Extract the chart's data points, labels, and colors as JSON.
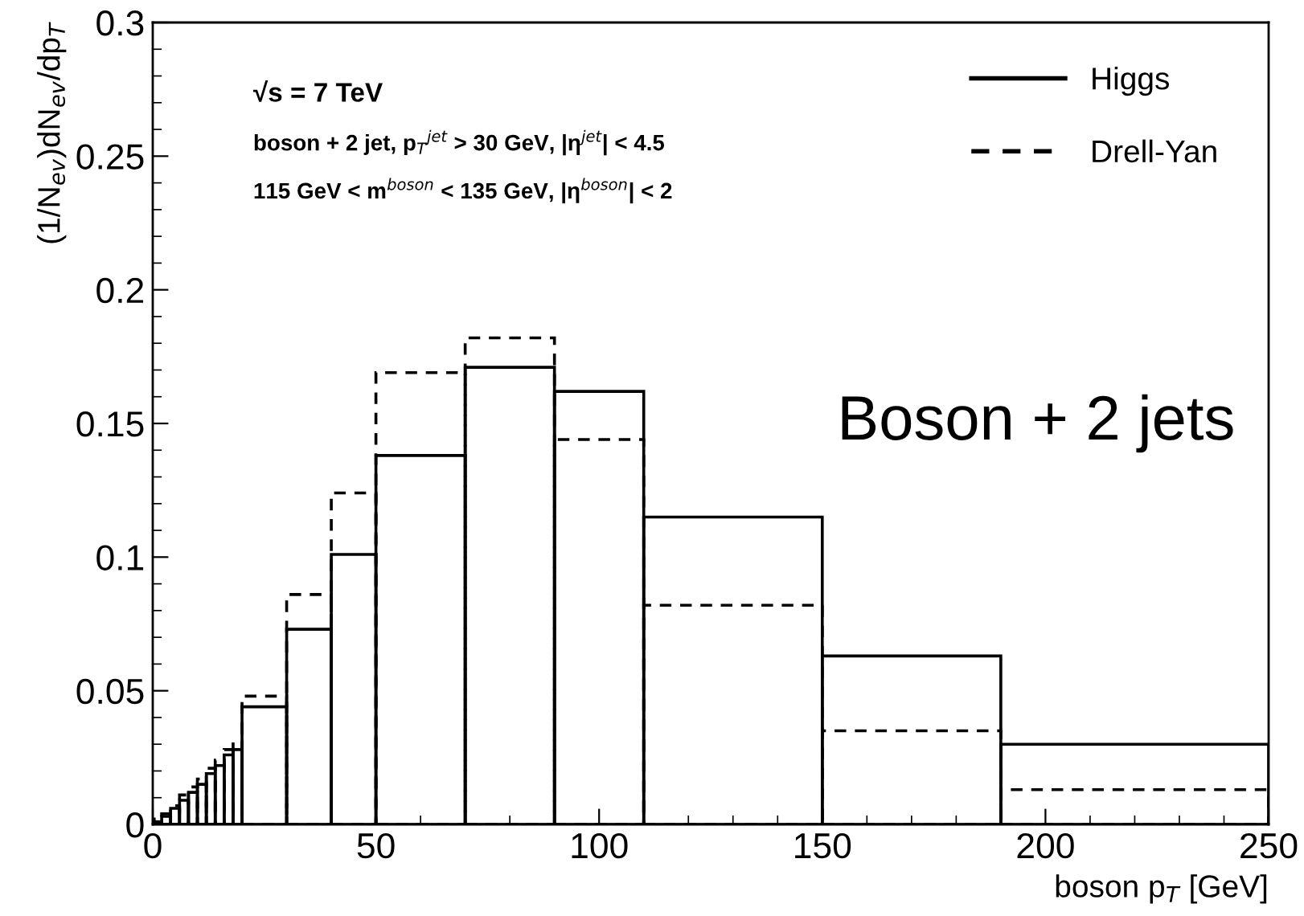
{
  "chart_data": {
    "type": "histogram",
    "xlabel": "boson p$_{T}$ [GeV]",
    "ylabel": "(1/N$_{ev}$)dN$_{ev}$/dp$_{T}$",
    "bins": [
      0,
      2,
      4,
      6,
      8,
      10,
      12,
      14,
      16,
      18,
      20,
      30,
      40,
      50,
      70,
      90,
      110,
      150,
      190,
      250
    ],
    "series": [
      {
        "name": "Higgs",
        "color": "#000000",
        "line_style": "solid",
        "values": [
          0.001,
          0.003,
          0.006,
          0.009,
          0.012,
          0.015,
          0.019,
          0.022,
          0.026,
          0.028,
          0.044,
          0.073,
          0.101,
          0.138,
          0.171,
          0.162,
          0.115,
          0.063,
          0.03
        ]
      },
      {
        "name": "Drell-Yan",
        "color": "#000000",
        "line_style": "dashed",
        "values": [
          0.002,
          0.004,
          0.007,
          0.011,
          0.014,
          0.017,
          0.021,
          0.024,
          0.028,
          0.031,
          0.048,
          0.086,
          0.124,
          0.169,
          0.182,
          0.144,
          0.082,
          0.035,
          0.013
        ]
      }
    ],
    "xlim": [
      0,
      250
    ],
    "ylim": [
      0,
      0.3
    ],
    "xticks": [
      0,
      50,
      100,
      150,
      200,
      250
    ],
    "yticks": [
      0,
      0.05,
      0.1,
      0.15,
      0.2,
      0.25,
      0.3
    ],
    "legend": "top right",
    "grid": false,
    "annotations": [
      "√s = 7 TeV",
      "boson + 2 jet, p$_{T}$$^{jet}$ > 30 GeV, |η$^{jet}$| < 4.5",
      "115 GeV < m$^{boson}$ < 135 GeV, |η$^{boson}$| < 2",
      "Boson + 2 jets"
    ]
  }
}
